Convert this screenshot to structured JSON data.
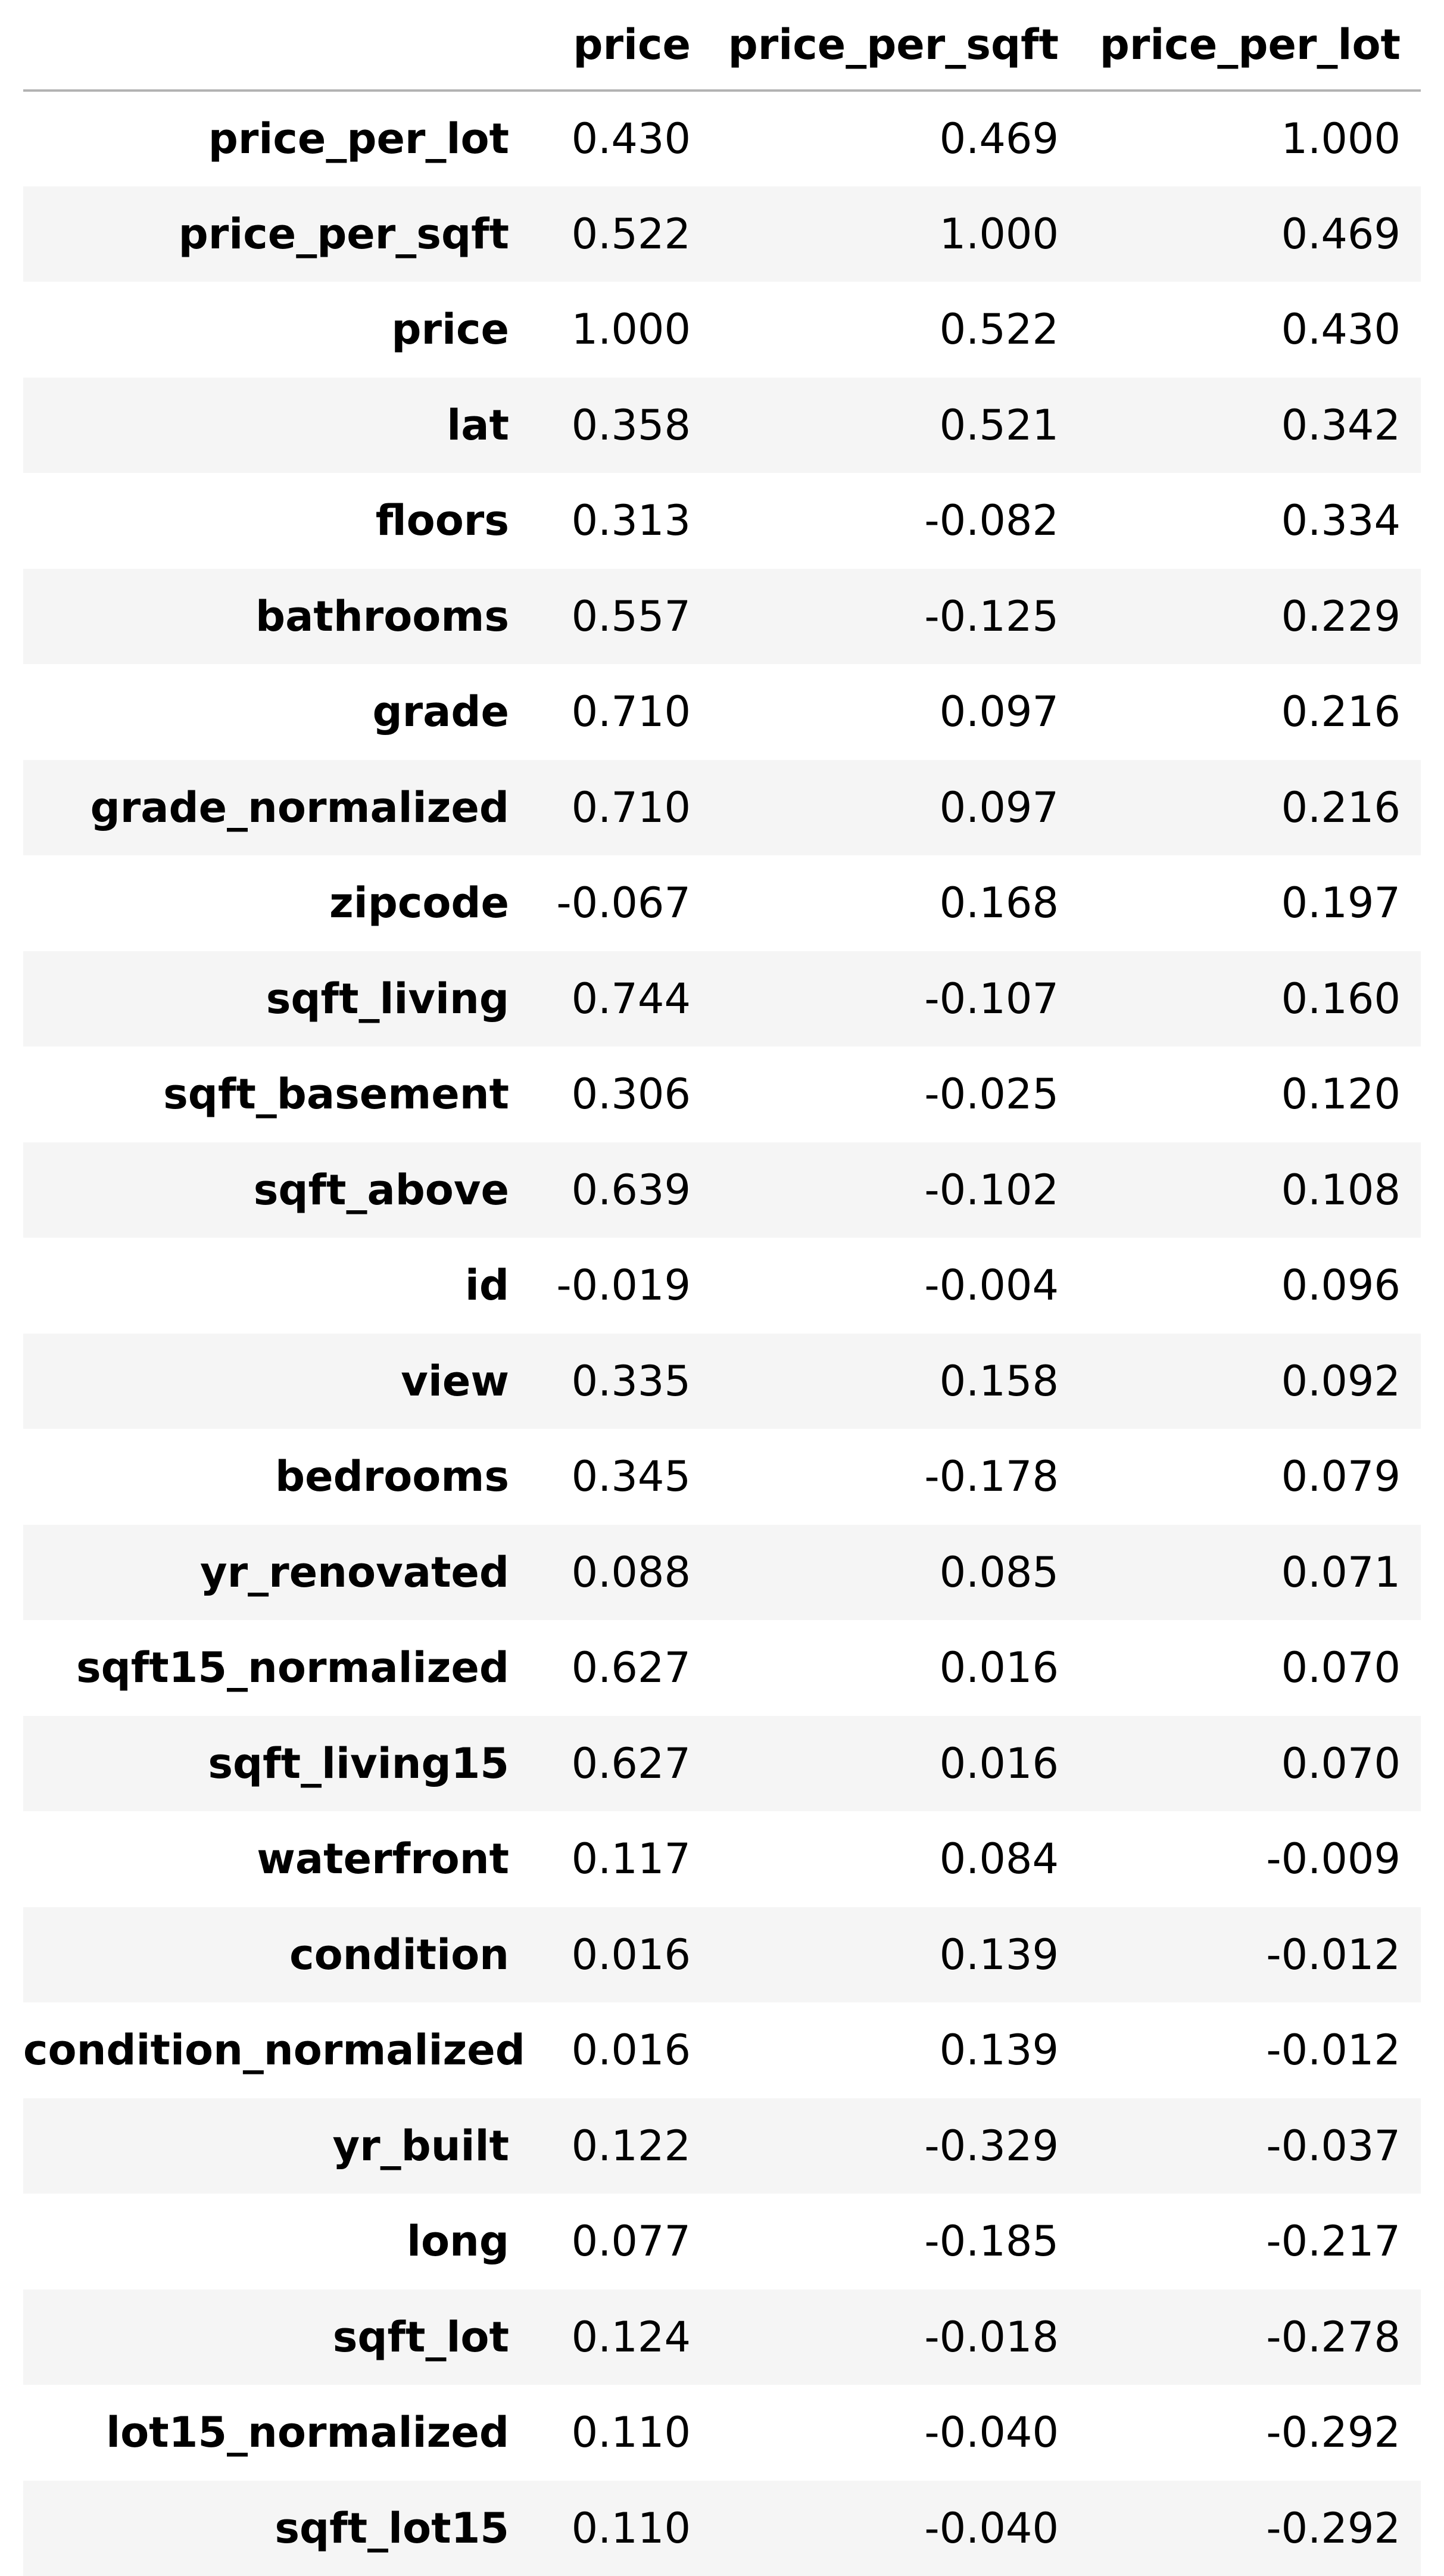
{
  "table": {
    "index_header": "",
    "columns": [
      "price",
      "price_per_sqft",
      "price_per_lot"
    ],
    "rows": [
      {
        "label": "price_per_lot",
        "values": [
          "0.430",
          "0.469",
          "1.000"
        ]
      },
      {
        "label": "price_per_sqft",
        "values": [
          "0.522",
          "1.000",
          "0.469"
        ]
      },
      {
        "label": "price",
        "values": [
          "1.000",
          "0.522",
          "0.430"
        ]
      },
      {
        "label": "lat",
        "values": [
          "0.358",
          "0.521",
          "0.342"
        ]
      },
      {
        "label": "floors",
        "values": [
          "0.313",
          "-0.082",
          "0.334"
        ]
      },
      {
        "label": "bathrooms",
        "values": [
          "0.557",
          "-0.125",
          "0.229"
        ]
      },
      {
        "label": "grade",
        "values": [
          "0.710",
          "0.097",
          "0.216"
        ]
      },
      {
        "label": "grade_normalized",
        "values": [
          "0.710",
          "0.097",
          "0.216"
        ]
      },
      {
        "label": "zipcode",
        "values": [
          "-0.067",
          "0.168",
          "0.197"
        ]
      },
      {
        "label": "sqft_living",
        "values": [
          "0.744",
          "-0.107",
          "0.160"
        ]
      },
      {
        "label": "sqft_basement",
        "values": [
          "0.306",
          "-0.025",
          "0.120"
        ]
      },
      {
        "label": "sqft_above",
        "values": [
          "0.639",
          "-0.102",
          "0.108"
        ]
      },
      {
        "label": "id",
        "values": [
          "-0.019",
          "-0.004",
          "0.096"
        ]
      },
      {
        "label": "view",
        "values": [
          "0.335",
          "0.158",
          "0.092"
        ]
      },
      {
        "label": "bedrooms",
        "values": [
          "0.345",
          "-0.178",
          "0.079"
        ]
      },
      {
        "label": "yr_renovated",
        "values": [
          "0.088",
          "0.085",
          "0.071"
        ]
      },
      {
        "label": "sqft15_normalized",
        "values": [
          "0.627",
          "0.016",
          "0.070"
        ]
      },
      {
        "label": "sqft_living15",
        "values": [
          "0.627",
          "0.016",
          "0.070"
        ]
      },
      {
        "label": "waterfront",
        "values": [
          "0.117",
          "0.084",
          "-0.009"
        ]
      },
      {
        "label": "condition",
        "values": [
          "0.016",
          "0.139",
          "-0.012"
        ]
      },
      {
        "label": "condition_normalized",
        "values": [
          "0.016",
          "0.139",
          "-0.012"
        ]
      },
      {
        "label": "yr_built",
        "values": [
          "0.122",
          "-0.329",
          "-0.037"
        ]
      },
      {
        "label": "long",
        "values": [
          "0.077",
          "-0.185",
          "-0.217"
        ]
      },
      {
        "label": "sqft_lot",
        "values": [
          "0.124",
          "-0.018",
          "-0.278"
        ]
      },
      {
        "label": "lot15_normalized",
        "values": [
          "0.110",
          "-0.040",
          "-0.292"
        ]
      },
      {
        "label": "sqft_lot15",
        "values": [
          "0.110",
          "-0.040",
          "-0.292"
        ]
      }
    ]
  }
}
